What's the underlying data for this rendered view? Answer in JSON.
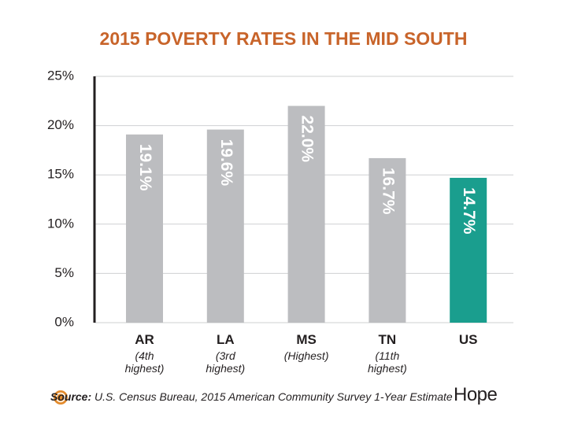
{
  "chart_data": {
    "type": "bar",
    "title": "2015 POVERTY RATES IN THE MID SOUTH",
    "categories": [
      "AR",
      "LA",
      "MS",
      "TN",
      "US"
    ],
    "category_notes": [
      "(4th highest)",
      "(3rd highest)",
      "(Highest)",
      "(11th highest)",
      null
    ],
    "values": [
      19.1,
      19.6,
      22.0,
      16.7,
      14.7
    ],
    "value_labels": [
      "19.1%",
      "19.6%",
      "22.0%",
      "16.7%",
      "14.7%"
    ],
    "colors": [
      "#bcbdc0",
      "#bcbdc0",
      "#bcbdc0",
      "#bcbdc0",
      "#1a9e8e"
    ],
    "ylim": [
      0,
      25
    ],
    "yticks": [
      {
        "value": 0,
        "label": "0%"
      },
      {
        "value": 5,
        "label": "5%"
      },
      {
        "value": 10,
        "label": "10%"
      },
      {
        "value": 15,
        "label": "15%"
      },
      {
        "value": 20,
        "label": "20%"
      },
      {
        "value": 25,
        "label": "25%"
      }
    ],
    "grid": true,
    "source_label": "Source:",
    "source": "U.S. Census Bureau, 2015 American Community Survey 1-Year Estimate",
    "logo": "Hope"
  }
}
